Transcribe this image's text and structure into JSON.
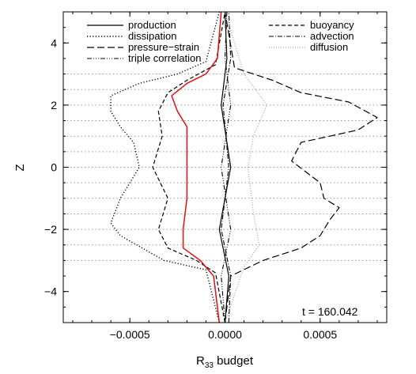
{
  "chart_data": {
    "type": "line",
    "xlabel": "R",
    "xlabel_subscript": "33",
    "xlabel_suffix": " budget",
    "ylabel": "Z",
    "xlim": [
      -0.00085,
      0.00085
    ],
    "ylim": [
      -5,
      5
    ],
    "x_ticks": [
      -0.0005,
      0.0,
      0.0005
    ],
    "x_tick_labels": [
      "−0.0005",
      "0.0000",
      "0.0005"
    ],
    "y_ticks": [
      -4,
      -2,
      0,
      2,
      4
    ],
    "y_tick_labels": [
      "−4",
      "−2",
      "0",
      "2",
      "4"
    ],
    "grid": "horizontal dotted at Z = -3, -2.5, -2, -1.5, -1, -0.5, 0, 0.5, 1, 1.5, 2, 2.5, 3",
    "grid_y": [
      -3,
      -2.5,
      -2,
      -1.5,
      -1,
      -0.5,
      0,
      0.5,
      1,
      1.5,
      2,
      2.5,
      3
    ],
    "legend_placement": "top",
    "annotation": "t = 160.042",
    "series": [
      {
        "name": "production",
        "style": "solid",
        "color": "#000000",
        "points": [
          [
            0.0,
            -5
          ],
          [
            2e-05,
            -3.5
          ],
          [
            -3e-05,
            -2
          ],
          [
            3e-05,
            0
          ],
          [
            -2e-05,
            2
          ],
          [
            1e-05,
            3.5
          ],
          [
            0.0,
            5
          ]
        ]
      },
      {
        "name": "dissipation",
        "style": "dotted",
        "color": "#000000",
        "points": [
          [
            -3e-05,
            -5
          ],
          [
            -0.0001,
            -3.3
          ],
          [
            -0.00032,
            -3.0
          ],
          [
            -0.00055,
            -2.2
          ],
          [
            -0.0006,
            -1.8
          ],
          [
            -0.00055,
            -1.0
          ],
          [
            -0.00045,
            0
          ],
          [
            -0.00048,
            0.8
          ],
          [
            -0.00055,
            1.3
          ],
          [
            -0.0006,
            1.8
          ],
          [
            -0.0006,
            2.3
          ],
          [
            -0.00045,
            2.7
          ],
          [
            -0.00025,
            3.0
          ],
          [
            -0.0001,
            3.4
          ],
          [
            -3e-05,
            5
          ]
        ]
      },
      {
        "name": "pressure−strain",
        "style": "longdash",
        "color": "#000000",
        "points": [
          [
            0.0,
            -5
          ],
          [
            3e-05,
            -3.5
          ],
          [
            0.0002,
            -3.0
          ],
          [
            0.0004,
            -2.6
          ],
          [
            0.0005,
            -2.2
          ],
          [
            0.00055,
            -1.7
          ],
          [
            0.0006,
            -1.3
          ],
          [
            0.00052,
            -1.0
          ],
          [
            0.0005,
            -0.5
          ],
          [
            0.00035,
            0.2
          ],
          [
            0.0004,
            0.8
          ],
          [
            0.0007,
            1.2
          ],
          [
            0.0008,
            1.6
          ],
          [
            0.00065,
            2.1
          ],
          [
            0.0004,
            2.4
          ],
          [
            0.00025,
            2.8
          ],
          [
            5e-05,
            3.2
          ],
          [
            0.0,
            5
          ]
        ]
      },
      {
        "name": "triple correlation",
        "style": "dashdotdotdot",
        "color": "#000000",
        "points": [
          [
            0.0,
            -5
          ],
          [
            -2e-05,
            -3.5
          ],
          [
            3e-05,
            -2
          ],
          [
            -2e-05,
            0
          ],
          [
            3e-05,
            2
          ],
          [
            0.0,
            3.5
          ],
          [
            1e-05,
            5
          ]
        ]
      },
      {
        "name": "buoyancy",
        "style": "dashed",
        "color": "#000000",
        "points": [
          [
            0.0,
            -5
          ],
          [
            -5e-05,
            -3.4
          ],
          [
            -0.00015,
            -3.0
          ],
          [
            -0.0003,
            -2.6
          ],
          [
            -0.00035,
            -2.0
          ],
          [
            -0.0003,
            -1.0
          ],
          [
            -0.00038,
            0
          ],
          [
            -0.00033,
            1.0
          ],
          [
            -0.00035,
            1.8
          ],
          [
            -0.0003,
            2.4
          ],
          [
            -0.0002,
            2.8
          ],
          [
            -5e-05,
            3.3
          ],
          [
            0.0,
            5
          ]
        ]
      },
      {
        "name": "advection",
        "style": "dashdot",
        "color": "#000000",
        "points": [
          [
            2e-05,
            -5
          ],
          [
            3e-05,
            -3.5
          ],
          [
            -2e-05,
            -2
          ],
          [
            2e-05,
            0
          ],
          [
            -1e-05,
            2
          ],
          [
            3e-05,
            3.5
          ],
          [
            2e-05,
            5
          ]
        ]
      },
      {
        "name": "diffusion",
        "style": "dotted-gray",
        "color": "#9a9a9a",
        "points": [
          [
            0.0,
            -5
          ],
          [
            0.0001,
            -3.2
          ],
          [
            0.00018,
            -2.5
          ],
          [
            0.00015,
            -1.5
          ],
          [
            0.00012,
            0
          ],
          [
            0.00015,
            1.0
          ],
          [
            0.00022,
            2.0
          ],
          [
            0.0001,
            3.0
          ],
          [
            0.0,
            5
          ]
        ]
      },
      {
        "name": "",
        "style": "solid-red",
        "color": "#e01010",
        "points": [
          [
            -3e-05,
            -5
          ],
          [
            -6e-05,
            -3.5
          ],
          [
            -0.00013,
            -3.0
          ],
          [
            -0.00022,
            -2.6
          ],
          [
            -0.00022,
            -2.0
          ],
          [
            -0.0002,
            -1.0
          ],
          [
            -0.0002,
            0
          ],
          [
            -0.0002,
            0.8
          ],
          [
            -0.0002,
            1.3
          ],
          [
            -0.00025,
            1.8
          ],
          [
            -0.00028,
            2.3
          ],
          [
            -0.0002,
            2.7
          ],
          [
            -0.0001,
            3.0
          ],
          [
            -4e-05,
            3.5
          ],
          [
            -2e-05,
            5
          ]
        ]
      }
    ]
  }
}
